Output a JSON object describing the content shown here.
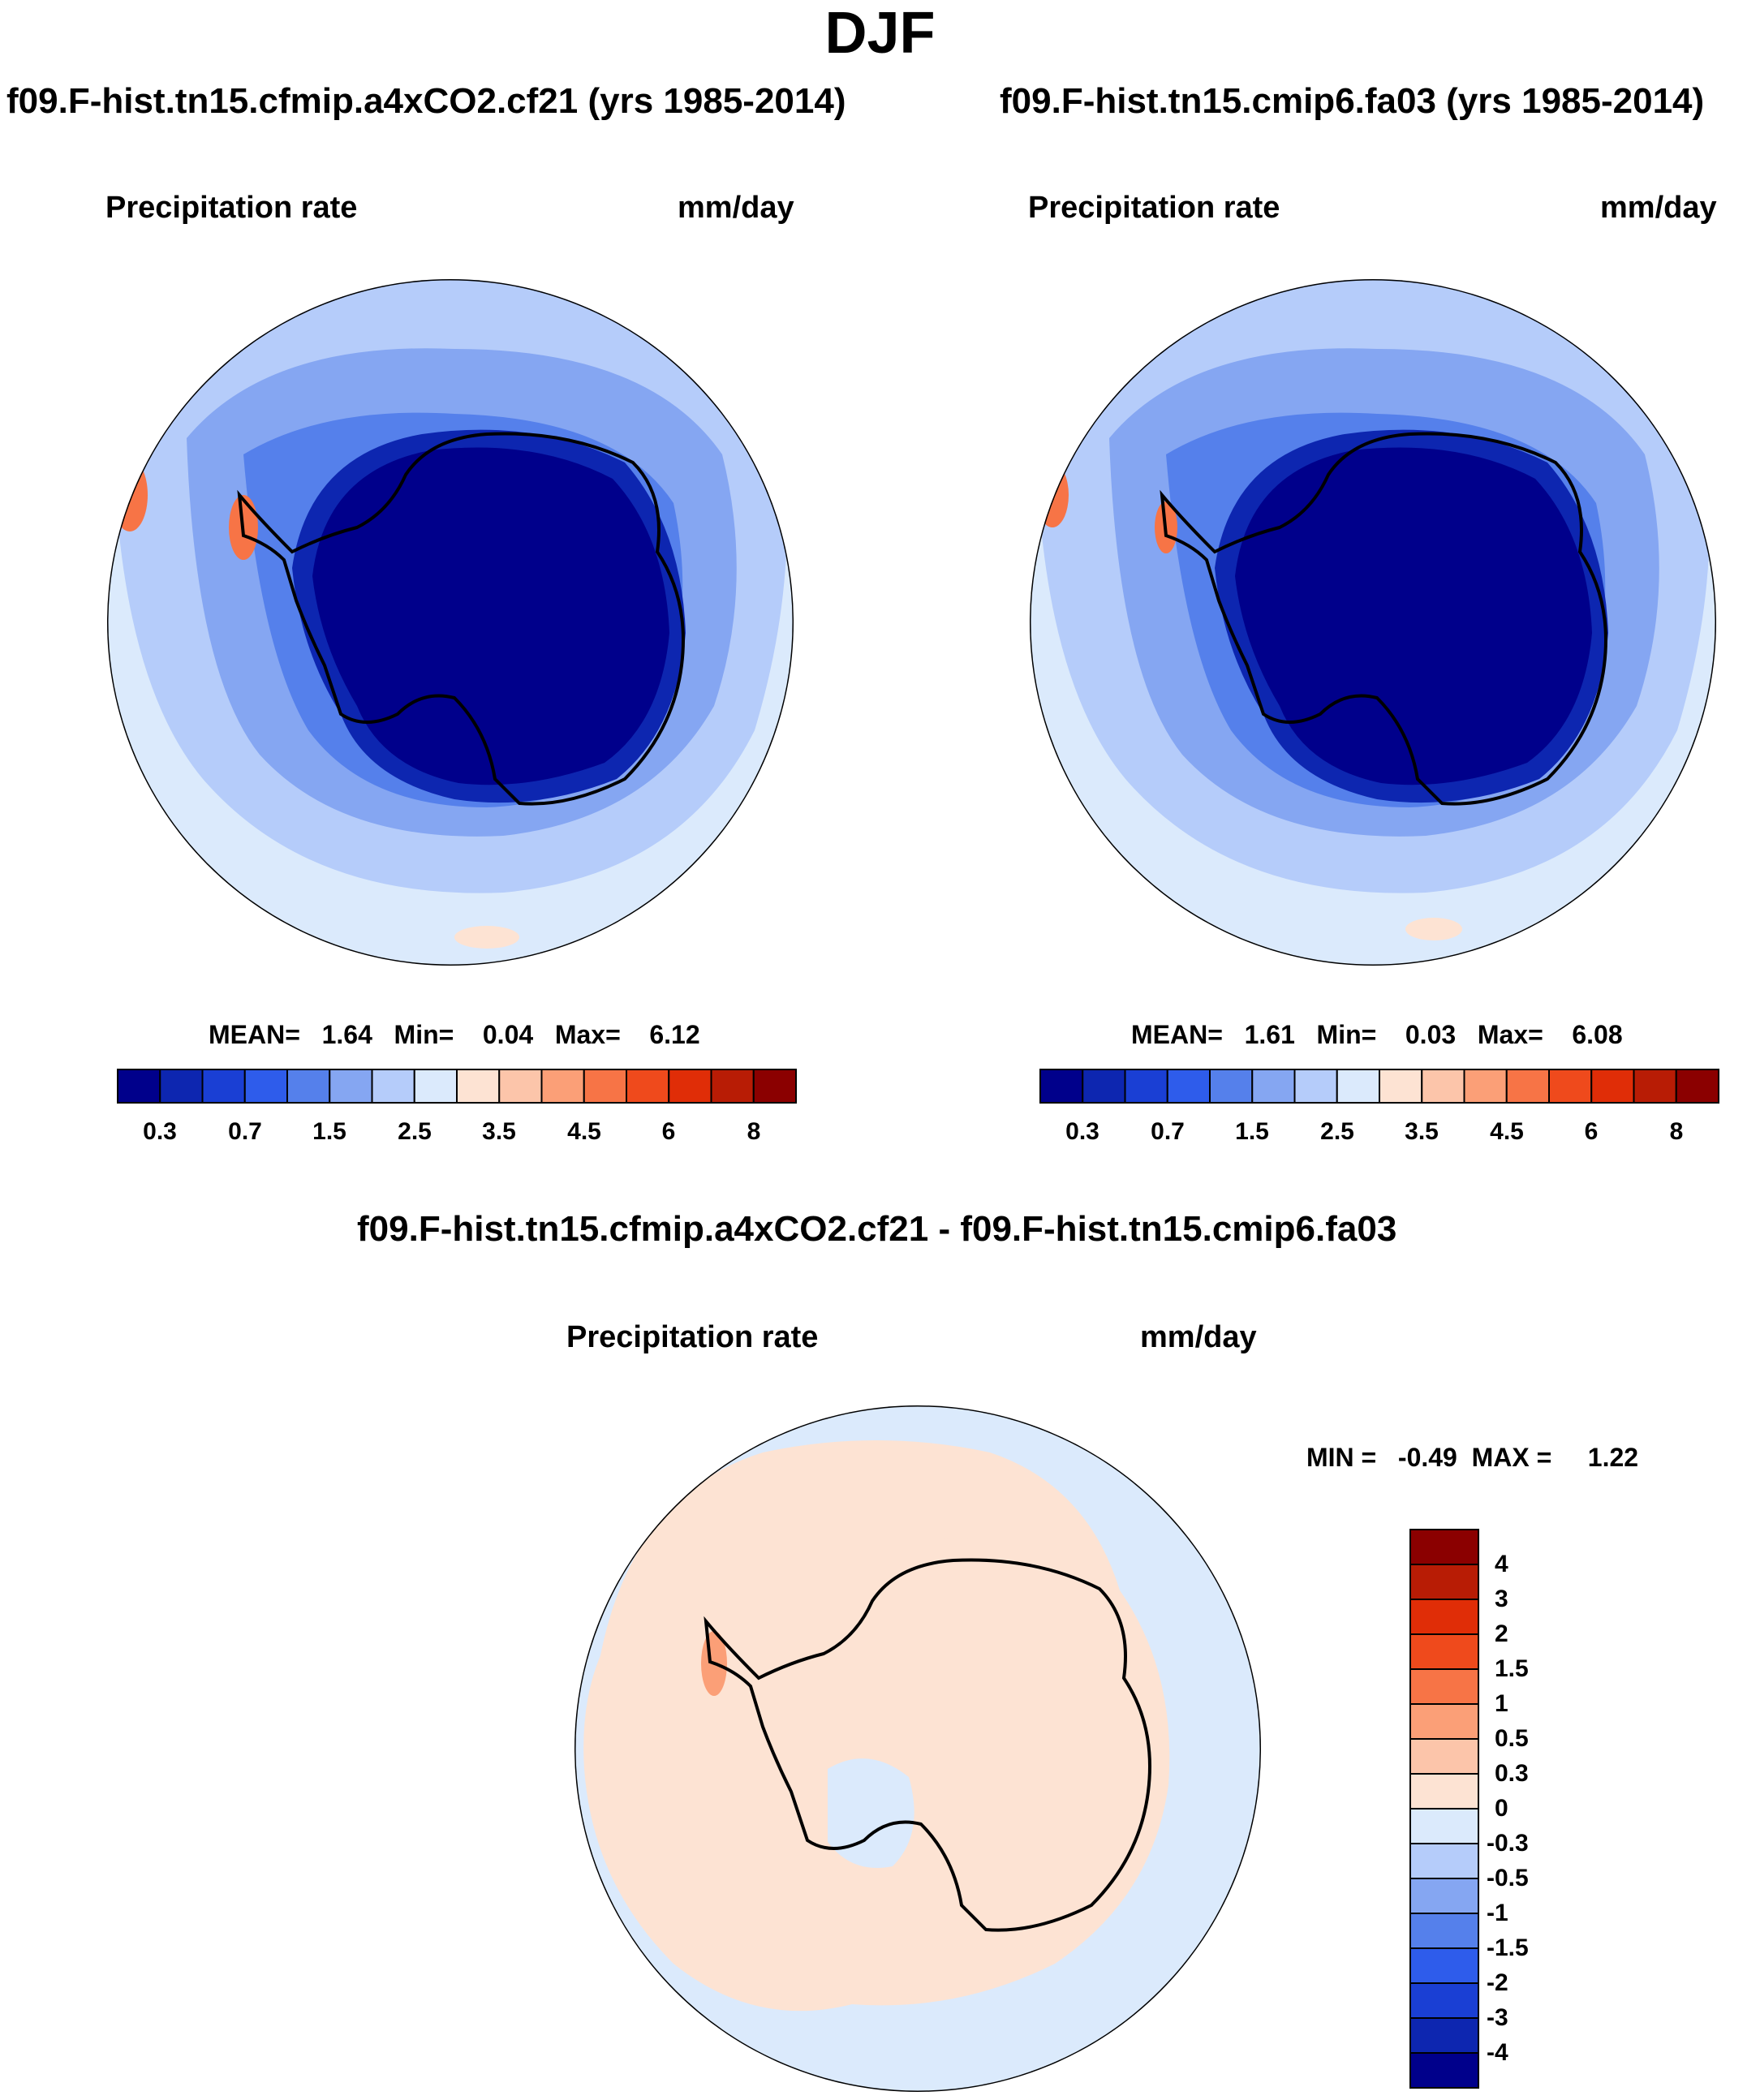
{
  "figure_title": "DJF",
  "panel_top_left": {
    "case": "f09.F-hist.tn15.cfmip.a4xCO2.cf21 (yrs 1985-2014)",
    "variable": "Precipitation rate",
    "units": "mm/day",
    "stats": "MEAN=   1.64   Min=    0.04   Max=    6.12"
  },
  "panel_top_right": {
    "case": "f09.F-hist.tn15.cmip6.fa03 (yrs 1985-2014)",
    "variable": "Precipitation rate",
    "units": "mm/day",
    "stats": "MEAN=   1.61   Min=    0.03   Max=    6.08"
  },
  "panel_bottom": {
    "case": "f09.F-hist.tn15.cfmip.a4xCO2.cf21 - f09.F-hist.tn15.cmip6.fa03",
    "variable": "Precipitation rate",
    "units": "mm/day",
    "stats": "MIN =   -0.49  MAX =     1.22"
  },
  "colorbar_mean": {
    "labels": [
      "0.3",
      "0.7",
      "1.5",
      "2.5",
      "3.5",
      "4.5",
      "6",
      "8"
    ],
    "colors": [
      "#00008b",
      "#0d26b0",
      "#1a3fd4",
      "#2e5ceb",
      "#5580eb",
      "#85a6f2",
      "#b5ccfa",
      "#dbeafc",
      "#fde3d3",
      "#fcc5aa",
      "#fb9f77",
      "#f77446",
      "#ef4a1c",
      "#e02d07",
      "#b81c05",
      "#8b0000"
    ]
  },
  "colorbar_diff": {
    "labels": [
      "4",
      "3",
      "2",
      "1.5",
      "1",
      "0.5",
      "0.3",
      "0",
      "-0.3",
      "-0.5",
      "-1",
      "-1.5",
      "-2",
      "-3",
      "-4"
    ],
    "colors": [
      "#8b0000",
      "#b81c05",
      "#e02d07",
      "#ef4a1c",
      "#f77446",
      "#fb9f77",
      "#fcc5aa",
      "#fde3d3",
      "#dbeafc",
      "#b5ccfa",
      "#85a6f2",
      "#5580eb",
      "#2e5ceb",
      "#1a3fd4",
      "#0d26b0",
      "#00008b"
    ]
  },
  "colors": {
    "ocean_far": "#dbeafc",
    "ocean_mid": "#b5ccfa",
    "ocean_storm": "#85a6f2",
    "coastal": "#5580eb",
    "interior": "#00008b",
    "interior_edge": "#0d26b0",
    "diff_pos": "#fde3d3",
    "diff_neg": "#dbeafc",
    "diff_peak": "#fb9f77"
  }
}
